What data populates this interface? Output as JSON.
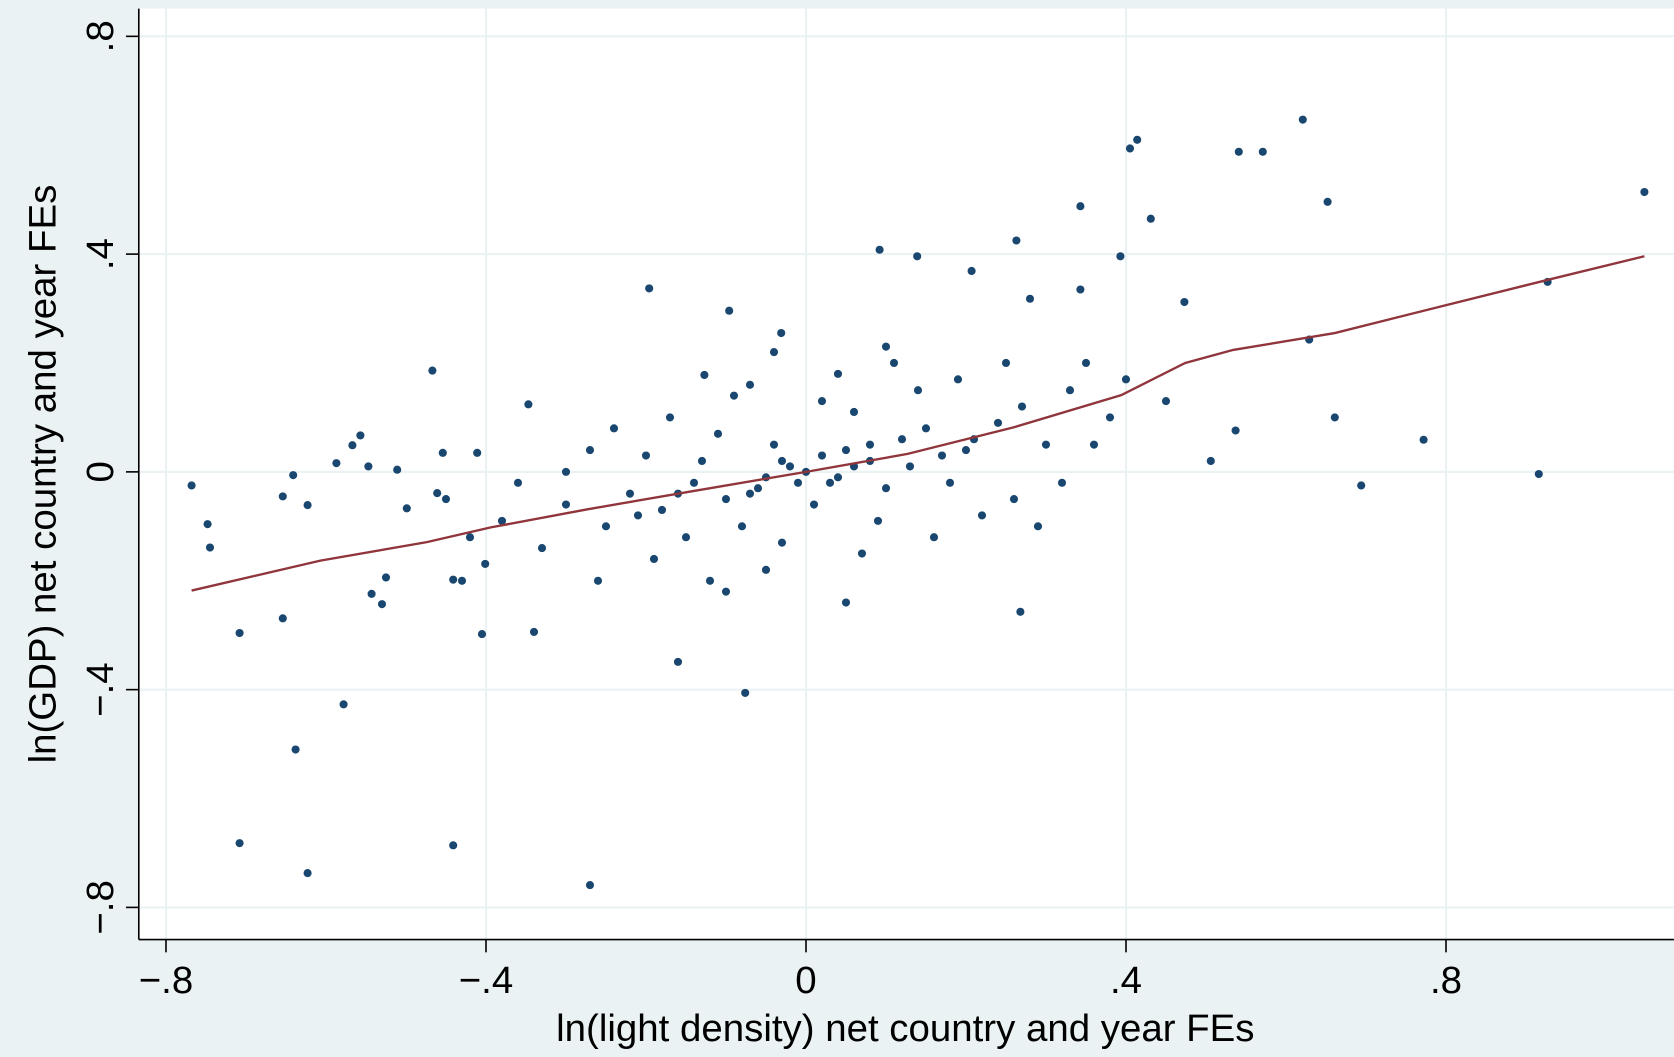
{
  "chart_data": {
    "type": "scatter",
    "x_label": "ln(light density) net country and year FEs",
    "y_label": "ln(GDP) net country and year FEs",
    "xlim": [
      -0.834,
      1.085
    ],
    "ylim": [
      -0.859,
      0.851
    ],
    "xticks": [
      {
        "value": -0.8,
        "label": "−.8"
      },
      {
        "value": -0.4,
        "label": "−.4"
      },
      0,
      {
        "value": 0.4,
        "label": ".4"
      },
      {
        "value": 0.8,
        "label": ".8"
      }
    ],
    "yticks": [
      {
        "value": -0.8,
        "label": "−.8"
      },
      {
        "value": -0.4,
        "label": "−.4"
      },
      0,
      {
        "value": 0.4,
        "label": ".4"
      },
      {
        "value": 0.8,
        "label": ".8"
      }
    ],
    "grid": true,
    "series": [
      {
        "type": "scatter",
        "color": "#1a476f",
        "x": [
          -0.768,
          -0.748,
          -0.745,
          -0.708,
          -0.708,
          -0.654,
          -0.638,
          -0.623,
          -0.623,
          -0.641,
          -0.654,
          -0.587,
          -0.578,
          -0.567,
          -0.557,
          -0.547,
          -0.543,
          -0.53,
          -0.525,
          -0.511,
          -0.499,
          -0.467,
          -0.461,
          -0.454,
          -0.441,
          -0.441,
          -0.43,
          -0.411,
          -0.405,
          -0.401,
          -0.347,
          -0.34,
          -0.27,
          -0.196,
          -0.16,
          -0.127,
          -0.096,
          -0.076,
          -0.031,
          0.092,
          0.139,
          0.207,
          0.263,
          0.268,
          0.28,
          0.343,
          0.343,
          0.393,
          0.405,
          0.414,
          0.431,
          0.473,
          0.506,
          0.541,
          0.571,
          0.537,
          0.621,
          0.629,
          0.652,
          0.661,
          0.694,
          0.772,
          0.916,
          0.927,
          1.048,
          -0.02,
          0.03,
          0.05,
          -0.06,
          0.08,
          -0.1,
          0.12,
          -0.04,
          0.01,
          0.1,
          -0.13,
          0.15,
          -0.18,
          0.2,
          -0.08,
          0.06,
          -0.15,
          0.18,
          -0.22,
          0.24,
          0.02,
          -0.03,
          0.09,
          -0.11,
          0.14,
          -0.2,
          0.27,
          -0.25,
          0.3,
          -0.3,
          0.22,
          -0.17,
          0.04,
          -0.05,
          0.16,
          -0.09,
          0.11,
          -0.12,
          0.33,
          -0.33,
          0.26,
          -0.27,
          0.07,
          -0.07,
          0.19,
          -0.19,
          0.35,
          -0.36,
          0.29,
          -0.24,
          0,
          0.02,
          -0.01,
          0.04,
          -0.03,
          0.06,
          -0.05,
          0.08,
          -0.07,
          0.13,
          -0.14,
          0.17,
          -0.16,
          0.21,
          -0.21,
          0.38,
          -0.38,
          0.32,
          -0.3,
          0.25,
          -0.26,
          0.1,
          -0.1,
          0.05,
          -0.04,
          0.4,
          -0.42,
          0.36,
          -0.45,
          0.45
        ],
        "values": [
          -0.025,
          -0.096,
          -0.139,
          -0.296,
          -0.682,
          -0.269,
          -0.51,
          -0.737,
          -0.061,
          -0.006,
          -0.045,
          0.016,
          -0.427,
          0.049,
          0.067,
          0.01,
          -0.224,
          -0.243,
          -0.194,
          0.004,
          -0.067,
          0.186,
          -0.039,
          0.035,
          -0.686,
          -0.198,
          -0.2,
          0.035,
          -0.298,
          -0.169,
          0.124,
          -0.294,
          -0.759,
          0.337,
          -0.349,
          0.178,
          0.296,
          -0.406,
          0.255,
          0.408,
          0.396,
          0.369,
          0.425,
          -0.257,
          0.318,
          0.488,
          0.335,
          0.396,
          0.594,
          0.61,
          0.465,
          0.312,
          0.02,
          0.588,
          0.588,
          0.076,
          0.647,
          0.243,
          0.496,
          0.1,
          -0.025,
          0.059,
          -0.004,
          0.349,
          0.514,
          0.01,
          -0.02,
          0.04,
          -0.03,
          0.02,
          -0.05,
          0.06,
          0.05,
          -0.06,
          -0.03,
          0.02,
          0.08,
          -0.07,
          0.04,
          -0.1,
          0.11,
          -0.12,
          -0.02,
          -0.04,
          0.09,
          0.13,
          -0.13,
          -0.09,
          0.07,
          0.15,
          0.03,
          0.12,
          -0.1,
          0.05,
          -0.06,
          -0.08,
          0.1,
          0.18,
          -0.18,
          -0.12,
          0.14,
          0.2,
          -0.2,
          0.15,
          -0.14,
          -0.05,
          0.04,
          -0.15,
          0.16,
          0.17,
          -0.16,
          0.2,
          -0.02,
          -0.1,
          0.08,
          0,
          0.03,
          -0.02,
          -0.01,
          0.02,
          0.01,
          -0.01,
          0.05,
          -0.04,
          0.01,
          -0.02,
          0.03,
          -0.04,
          0.06,
          -0.08,
          0.1,
          -0.09,
          -0.02,
          0,
          0.2,
          -0.2,
          0.23,
          -0.22,
          -0.24,
          0.22,
          0.17,
          -0.12,
          0.05,
          -0.05,
          0.13
        ]
      },
      {
        "type": "line",
        "color": "#90353b",
        "x": [
          -0.768,
          -0.607,
          -0.474,
          -0.394,
          -0.274,
          -0.14,
          0,
          0.127,
          0.26,
          0.394,
          0.474,
          0.534,
          0.661,
          0.794,
          0.928,
          1.048
        ],
        "values": [
          -0.218,
          -0.163,
          -0.129,
          -0.102,
          -0.069,
          -0.035,
          0,
          0.033,
          0.082,
          0.141,
          0.2,
          0.224,
          0.255,
          0.304,
          0.353,
          0.396
        ]
      }
    ]
  }
}
